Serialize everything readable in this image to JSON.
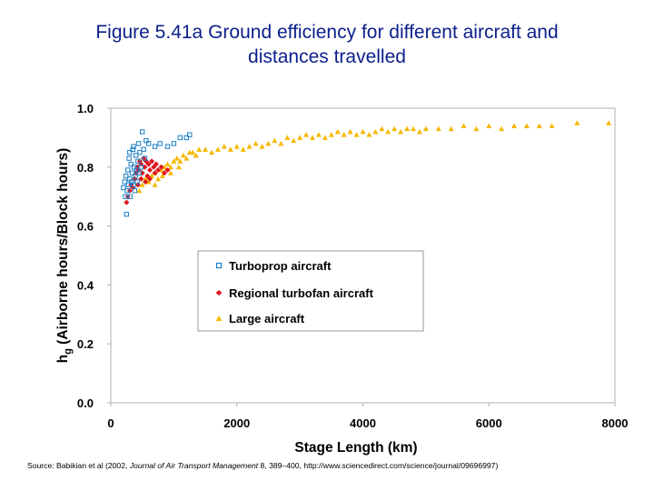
{
  "title": {
    "line1": "Figure 5.41a Ground efficiency for different aircraft and",
    "line2": "distances travelled"
  },
  "colors": {
    "title": "#0b1f8a",
    "turboprop": "#1a7fc4",
    "regional": "#e0141c",
    "large": "#f5b800"
  },
  "chart_data": {
    "type": "scatter",
    "title": "",
    "xlabel": "Stage Length (km)",
    "ylabel_symbol": "h",
    "ylabel_subscript": "g",
    "ylabel_rest": " (Airborne hours/Block hours)",
    "xlim": [
      0,
      8000
    ],
    "ylim": [
      0.0,
      1.0
    ],
    "xticks": [
      "0",
      "2000",
      "4000",
      "6000",
      "8000"
    ],
    "yticks": [
      "0.0",
      "0.2",
      "0.4",
      "0.6",
      "0.8",
      "1.0"
    ],
    "grid": false,
    "legend_position": "center-right",
    "series": [
      {
        "name": "Turboprop aircraft",
        "marker": "open-square",
        "points": [
          [
            200,
            0.73
          ],
          [
            220,
            0.75
          ],
          [
            230,
            0.7
          ],
          [
            240,
            0.77
          ],
          [
            250,
            0.64
          ],
          [
            260,
            0.72
          ],
          [
            270,
            0.79
          ],
          [
            280,
            0.74
          ],
          [
            290,
            0.83
          ],
          [
            300,
            0.76
          ],
          [
            310,
            0.7
          ],
          [
            320,
            0.81
          ],
          [
            330,
            0.75
          ],
          [
            340,
            0.78
          ],
          [
            350,
            0.86
          ],
          [
            360,
            0.74
          ],
          [
            370,
            0.8
          ],
          [
            380,
            0.72
          ],
          [
            390,
            0.77
          ],
          [
            400,
            0.84
          ],
          [
            410,
            0.79
          ],
          [
            420,
            0.75
          ],
          [
            430,
            0.82
          ],
          [
            440,
            0.88
          ],
          [
            450,
            0.78
          ],
          [
            460,
            0.85
          ],
          [
            480,
            0.8
          ],
          [
            500,
            0.92
          ],
          [
            520,
            0.86
          ],
          [
            540,
            0.83
          ],
          [
            560,
            0.89
          ],
          [
            600,
            0.88
          ],
          [
            700,
            0.87
          ],
          [
            780,
            0.88
          ],
          [
            900,
            0.87
          ],
          [
            1000,
            0.88
          ],
          [
            1100,
            0.9
          ],
          [
            1200,
            0.9
          ],
          [
            1250,
            0.91
          ],
          [
            360,
            0.87
          ],
          [
            300,
            0.85
          ]
        ]
      },
      {
        "name": "Regional turbofan aircraft",
        "marker": "diamond",
        "points": [
          [
            250,
            0.68
          ],
          [
            270,
            0.7
          ],
          [
            300,
            0.72
          ],
          [
            320,
            0.74
          ],
          [
            350,
            0.73
          ],
          [
            380,
            0.76
          ],
          [
            400,
            0.78
          ],
          [
            420,
            0.8
          ],
          [
            440,
            0.79
          ],
          [
            460,
            0.82
          ],
          [
            480,
            0.81
          ],
          [
            500,
            0.78
          ],
          [
            520,
            0.83
          ],
          [
            540,
            0.8
          ],
          [
            560,
            0.82
          ],
          [
            580,
            0.77
          ],
          [
            600,
            0.81
          ],
          [
            620,
            0.79
          ],
          [
            650,
            0.82
          ],
          [
            680,
            0.8
          ],
          [
            700,
            0.78
          ],
          [
            720,
            0.81
          ],
          [
            750,
            0.79
          ],
          [
            800,
            0.8
          ],
          [
            850,
            0.78
          ],
          [
            900,
            0.79
          ],
          [
            550,
            0.75
          ],
          [
            620,
            0.76
          ],
          [
            480,
            0.76
          ],
          [
            430,
            0.74
          ]
        ]
      },
      {
        "name": "Large aircraft",
        "marker": "triangle",
        "points": [
          [
            450,
            0.72
          ],
          [
            500,
            0.74
          ],
          [
            550,
            0.76
          ],
          [
            600,
            0.75
          ],
          [
            650,
            0.77
          ],
          [
            700,
            0.78
          ],
          [
            750,
            0.76
          ],
          [
            800,
            0.79
          ],
          [
            850,
            0.8
          ],
          [
            900,
            0.81
          ],
          [
            950,
            0.8
          ],
          [
            1000,
            0.82
          ],
          [
            1050,
            0.83
          ],
          [
            1100,
            0.82
          ],
          [
            1150,
            0.84
          ],
          [
            1200,
            0.83
          ],
          [
            1300,
            0.85
          ],
          [
            1400,
            0.86
          ],
          [
            1500,
            0.86
          ],
          [
            1600,
            0.85
          ],
          [
            1700,
            0.86
          ],
          [
            1800,
            0.87
          ],
          [
            1900,
            0.86
          ],
          [
            2000,
            0.87
          ],
          [
            2100,
            0.86
          ],
          [
            2200,
            0.87
          ],
          [
            2300,
            0.88
          ],
          [
            2400,
            0.87
          ],
          [
            2500,
            0.88
          ],
          [
            2600,
            0.89
          ],
          [
            2700,
            0.88
          ],
          [
            2800,
            0.9
          ],
          [
            2900,
            0.89
          ],
          [
            3000,
            0.9
          ],
          [
            3100,
            0.91
          ],
          [
            3200,
            0.9
          ],
          [
            3300,
            0.91
          ],
          [
            3400,
            0.9
          ],
          [
            3500,
            0.91
          ],
          [
            3600,
            0.92
          ],
          [
            3700,
            0.91
          ],
          [
            3800,
            0.92
          ],
          [
            3900,
            0.91
          ],
          [
            4000,
            0.92
          ],
          [
            4100,
            0.91
          ],
          [
            4200,
            0.92
          ],
          [
            4300,
            0.93
          ],
          [
            4400,
            0.92
          ],
          [
            4500,
            0.93
          ],
          [
            4600,
            0.92
          ],
          [
            4700,
            0.93
          ],
          [
            4800,
            0.93
          ],
          [
            4900,
            0.92
          ],
          [
            5000,
            0.93
          ],
          [
            5200,
            0.93
          ],
          [
            5400,
            0.93
          ],
          [
            5600,
            0.94
          ],
          [
            5800,
            0.93
          ],
          [
            6000,
            0.94
          ],
          [
            6200,
            0.93
          ],
          [
            6400,
            0.94
          ],
          [
            6600,
            0.94
          ],
          [
            6800,
            0.94
          ],
          [
            7000,
            0.94
          ],
          [
            7400,
            0.95
          ],
          [
            7900,
            0.95
          ],
          [
            1250,
            0.85
          ],
          [
            1350,
            0.84
          ],
          [
            950,
            0.78
          ],
          [
            1080,
            0.8
          ],
          [
            700,
            0.74
          ],
          [
            820,
            0.77
          ]
        ]
      }
    ]
  },
  "source": {
    "prefix": "Source: Babikian et al (2002, ",
    "journal": "Journal of Air Transport Management",
    "suffix": " 8, 389–400, http://www.sciencedirect.com/science/journal/09696997)"
  }
}
